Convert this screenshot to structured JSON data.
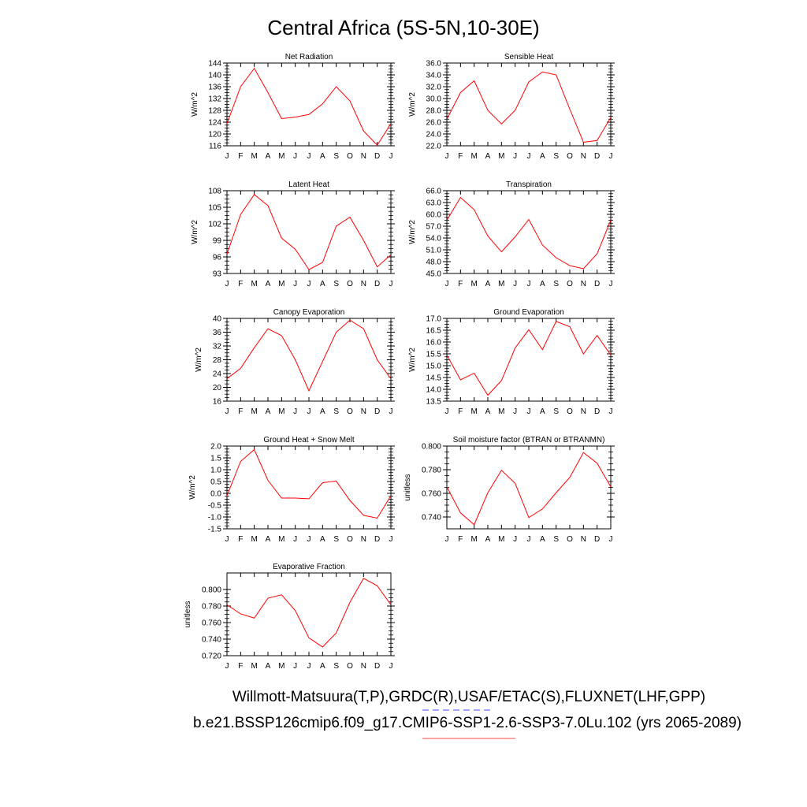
{
  "figure": {
    "title": "Central Africa (5S-5N,10-30E)",
    "footer_line1": "Willmott-Matsuura(T,P),GRDC(R),USAF/ETAC(S),FLUXNET(LHF,GPP)",
    "footer_line2": "b.e21.BSSP126cmip6.f09_g17.CMIP6-SSP1-2.6-SSP3-7.0Lu.102 (yrs 2065-2089)",
    "legend_line1_color": "#6b6bff",
    "legend_line2_color": "#ff6b6b",
    "series_color": "#ff0000"
  },
  "chart_data": [
    {
      "type": "line",
      "title": "Net Radiation",
      "ylabel": "W/m^2",
      "categories": [
        "J",
        "F",
        "M",
        "A",
        "M",
        "J",
        "J",
        "A",
        "S",
        "O",
        "N",
        "D",
        "J"
      ],
      "values": [
        123.5,
        136.0,
        142.2,
        134.0,
        125.2,
        125.7,
        126.6,
        130.2,
        136.0,
        131.2,
        121.0,
        116.2,
        123.5
      ],
      "ylim": [
        116,
        144
      ],
      "yticks": [
        116,
        120,
        124,
        128,
        132,
        136,
        140,
        144
      ],
      "ytick_labels": [
        "116",
        "120",
        "124",
        "128",
        "132",
        "136",
        "140",
        "144"
      ]
    },
    {
      "type": "line",
      "title": "Sensible Heat",
      "ylabel": "W/m^2",
      "categories": [
        "J",
        "F",
        "M",
        "A",
        "M",
        "J",
        "J",
        "A",
        "S",
        "O",
        "N",
        "D",
        "J"
      ],
      "values": [
        26.5,
        31.0,
        33.0,
        28.0,
        25.7,
        28.0,
        32.8,
        34.5,
        34.0,
        28.2,
        22.6,
        22.9,
        26.8
      ],
      "ylim": [
        22,
        36
      ],
      "yticks": [
        22,
        24,
        26,
        28,
        30,
        32,
        34,
        36
      ],
      "ytick_labels": [
        "22.0",
        "24.0",
        "26.0",
        "28.0",
        "30.0",
        "32.0",
        "34.0",
        "36.0"
      ]
    },
    {
      "type": "line",
      "title": "Latent Heat",
      "ylabel": "W/m^2",
      "categories": [
        "J",
        "F",
        "M",
        "A",
        "M",
        "J",
        "J",
        "A",
        "S",
        "O",
        "N",
        "D",
        "J"
      ],
      "values": [
        96.5,
        103.7,
        107.3,
        105.3,
        99.4,
        97.4,
        93.7,
        95.0,
        101.6,
        103.2,
        99.0,
        94.2,
        96.4
      ],
      "ylim": [
        93,
        108
      ],
      "yticks": [
        93,
        96,
        99,
        102,
        105,
        108
      ],
      "ytick_labels": [
        "93",
        "96",
        "99",
        "102",
        "105",
        "108"
      ]
    },
    {
      "type": "line",
      "title": "Transpiration",
      "ylabel": "W/m^2",
      "categories": [
        "J",
        "F",
        "M",
        "A",
        "M",
        "J",
        "J",
        "A",
        "S",
        "O",
        "N",
        "D",
        "J"
      ],
      "values": [
        58.5,
        64.3,
        61.2,
        54.5,
        50.5,
        54.3,
        58.7,
        52.2,
        49.0,
        47.0,
        46.2,
        50.0,
        58.5
      ],
      "ylim": [
        45,
        66
      ],
      "yticks": [
        45,
        48,
        51,
        54,
        57,
        60,
        63,
        66
      ],
      "ytick_labels": [
        "45.0",
        "48.0",
        "51.0",
        "54.0",
        "57.0",
        "60.0",
        "63.0",
        "66.0"
      ]
    },
    {
      "type": "line",
      "title": "Canopy Evaporation",
      "ylabel": "W/m^2",
      "categories": [
        "J",
        "F",
        "M",
        "A",
        "M",
        "J",
        "J",
        "A",
        "S",
        "O",
        "N",
        "D",
        "J"
      ],
      "values": [
        22.5,
        25.5,
        31.5,
        37.0,
        35.0,
        28.0,
        19.0,
        27.5,
        36.0,
        39.5,
        37.0,
        28.0,
        22.5
      ],
      "ylim": [
        16,
        40
      ],
      "yticks": [
        16,
        20,
        24,
        28,
        32,
        36,
        40
      ],
      "ytick_labels": [
        "16",
        "20",
        "24",
        "28",
        "32",
        "36",
        "40"
      ]
    },
    {
      "type": "line",
      "title": "Ground Evaporation",
      "ylabel": "W/m^2",
      "categories": [
        "J",
        "F",
        "M",
        "A",
        "M",
        "J",
        "J",
        "A",
        "S",
        "O",
        "N",
        "D",
        "J"
      ],
      "values": [
        15.45,
        14.4,
        14.68,
        13.75,
        14.37,
        15.75,
        16.52,
        15.68,
        16.87,
        16.65,
        15.5,
        16.28,
        15.45
      ],
      "ylim": [
        13.5,
        17.0
      ],
      "yticks": [
        13.5,
        14.0,
        14.5,
        15.0,
        15.5,
        16.0,
        16.5,
        17.0
      ],
      "ytick_labels": [
        "13.5",
        "14.0",
        "14.5",
        "15.0",
        "15.5",
        "16.0",
        "16.5",
        "17.0"
      ]
    },
    {
      "type": "line",
      "title": "Ground Heat + Snow Melt",
      "ylabel": "W/m^2",
      "categories": [
        "J",
        "F",
        "M",
        "A",
        "M",
        "J",
        "J",
        "A",
        "S",
        "O",
        "N",
        "D",
        "J"
      ],
      "values": [
        -0.1,
        1.35,
        1.85,
        0.55,
        -0.2,
        -0.2,
        -0.23,
        0.45,
        0.52,
        -0.3,
        -0.93,
        -1.05,
        -0.1
      ],
      "ylim": [
        -1.5,
        2.0
      ],
      "yticks": [
        -1.5,
        -1.0,
        -0.5,
        0.0,
        0.5,
        1.0,
        1.5,
        2.0
      ],
      "ytick_labels": [
        "-1.5",
        "-1.0",
        "-0.5",
        "0.0",
        "0.5",
        "1.0",
        "1.5",
        "2.0"
      ]
    },
    {
      "type": "line",
      "title": "Soil moisture factor (BTRAN or BTRANMN)",
      "ylabel": "unitless",
      "categories": [
        "J",
        "F",
        "M",
        "A",
        "M",
        "J",
        "J",
        "A",
        "S",
        "O",
        "N",
        "D",
        "J"
      ],
      "values": [
        0.7655,
        0.7435,
        0.7335,
        0.7605,
        0.7795,
        0.7685,
        0.7395,
        0.7468,
        0.7605,
        0.7735,
        0.7945,
        0.7855,
        0.7655
      ],
      "ylim": [
        0.73,
        0.8
      ],
      "yticks": [
        0.74,
        0.76,
        0.78,
        0.8
      ],
      "ytick_labels": [
        "0.740",
        "0.760",
        "0.780",
        "0.800"
      ]
    },
    {
      "type": "line",
      "title": "Evaporative Fraction",
      "ylabel": "unitless",
      "categories": [
        "J",
        "F",
        "M",
        "A",
        "M",
        "J",
        "J",
        "A",
        "S",
        "O",
        "N",
        "D",
        "J"
      ],
      "values": [
        0.7815,
        0.7705,
        0.7655,
        0.7895,
        0.7935,
        0.7745,
        0.7415,
        0.7305,
        0.7475,
        0.7845,
        0.8135,
        0.8045,
        0.7815
      ],
      "ylim": [
        0.72,
        0.82
      ],
      "yticks": [
        0.72,
        0.74,
        0.76,
        0.78,
        0.8
      ],
      "ytick_labels": [
        "0.720",
        "0.740",
        "0.760",
        "0.780",
        "0.800"
      ]
    }
  ]
}
